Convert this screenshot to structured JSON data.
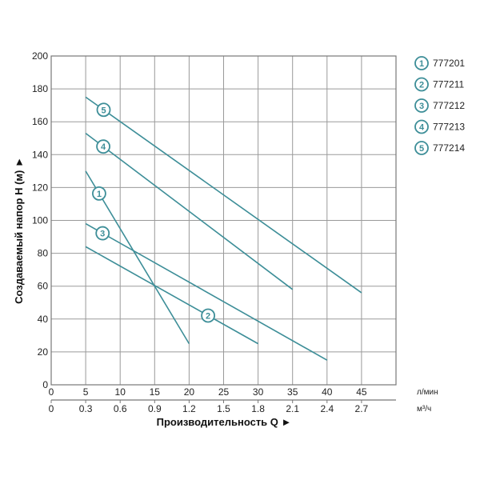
{
  "chart_data": {
    "type": "line",
    "xlabel": "Производительность Q ►",
    "ylabel": "Создаваемый напор Н (м) ►",
    "x_unit": "л/мин",
    "x2_unit": "м³/ч",
    "xlim": [
      0,
      50
    ],
    "ylim": [
      0,
      200
    ],
    "x_ticks": [
      "0",
      "5",
      "10",
      "15",
      "20",
      "25",
      "30",
      "35",
      "40",
      "45"
    ],
    "x2_ticks": [
      "0",
      "0.3",
      "0.6",
      "0.9",
      "1.2",
      "1.5",
      "1.8",
      "2.1",
      "2.4",
      "2.7"
    ],
    "y_ticks": [
      "0",
      "20",
      "40",
      "60",
      "80",
      "100",
      "120",
      "140",
      "160",
      "180",
      "200"
    ],
    "grid": true,
    "legend_position": "right",
    "line_color": "#3d8e98",
    "series": [
      {
        "name": "1",
        "label": "777201",
        "x": [
          5,
          20
        ],
        "y": [
          130,
          25
        ],
        "marker_at": 0.13
      },
      {
        "name": "2",
        "label": "777211",
        "x": [
          5,
          30
        ],
        "y": [
          84,
          25
        ],
        "marker_at": 0.71
      },
      {
        "name": "3",
        "label": "777212",
        "x": [
          5,
          40
        ],
        "y": [
          98,
          15
        ],
        "marker_at": 0.07
      },
      {
        "name": "4",
        "label": "777213",
        "x": [
          5,
          35
        ],
        "y": [
          153,
          58
        ],
        "marker_at": 0.085
      },
      {
        "name": "5",
        "label": "777214",
        "x": [
          5,
          45
        ],
        "y": [
          175,
          56
        ],
        "marker_at": 0.065
      }
    ]
  }
}
